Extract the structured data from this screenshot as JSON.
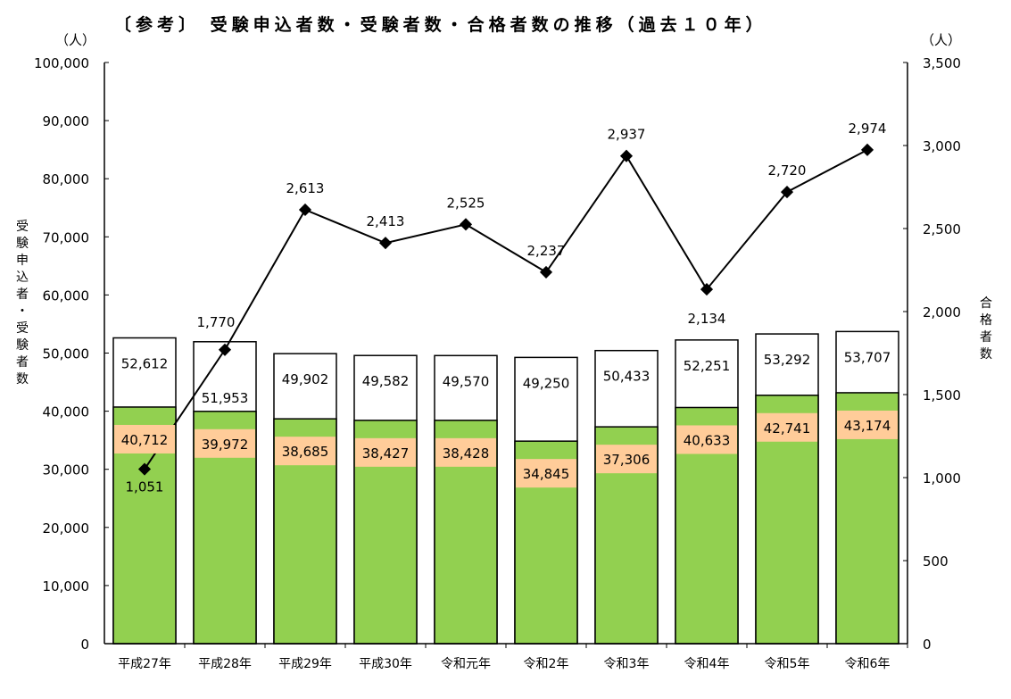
{
  "chart_data": {
    "type": "bar+line",
    "title": "〔参考〕 受験申込者数・受験者数・合格者数の推移（過去１０年）",
    "left_unit": "（人）",
    "right_unit": "（人）",
    "ylabel": "受験申込者・受験者数",
    "y2label": "合格者数",
    "ylim": [
      0,
      100000
    ],
    "y2lim": [
      0,
      3500
    ],
    "yticks": [
      "0",
      "10,000",
      "20,000",
      "30,000",
      "40,000",
      "50,000",
      "60,000",
      "70,000",
      "80,000",
      "90,000",
      "100,000"
    ],
    "y2ticks": [
      "0",
      "500",
      "1,000",
      "1,500",
      "2,000",
      "2,500",
      "3,000",
      "3,500"
    ],
    "categories": [
      "平成27年",
      "平成28年",
      "平成29年",
      "平成30年",
      "令和元年",
      "令和2年",
      "令和3年",
      "令和4年",
      "令和5年",
      "令和6年"
    ],
    "series": [
      {
        "key": "applicants",
        "type": "bar",
        "axis": "left",
        "color": "#FFFFFF",
        "values": [
          52612,
          51953,
          49902,
          49582,
          49570,
          49250,
          50433,
          52251,
          53292,
          53707
        ],
        "labels": [
          "52,612",
          "51,953",
          "49,902",
          "49,582",
          "49,570",
          "49,250",
          "50,433",
          "52,251",
          "53,292",
          "53,707"
        ]
      },
      {
        "key": "examinees",
        "type": "bar",
        "axis": "left",
        "color": "#92D050",
        "label_bg": "#FFCC99",
        "values": [
          40712,
          39972,
          38685,
          38427,
          38428,
          34845,
          37306,
          40633,
          42741,
          43174
        ],
        "labels": [
          "40,712",
          "39,972",
          "38,685",
          "38,427",
          "38,428",
          "34,845",
          "37,306",
          "40,633",
          "42,741",
          "43,174"
        ]
      },
      {
        "key": "passers",
        "type": "line",
        "axis": "right",
        "color": "#000000",
        "values": [
          1051,
          1770,
          2613,
          2413,
          2525,
          2237,
          2937,
          2134,
          2720,
          2974
        ],
        "labels": [
          "1,051",
          "1,770",
          "2,613",
          "2,413",
          "2,525",
          "2,237",
          "2,937",
          "2,134",
          "2,720",
          "2,974"
        ]
      }
    ],
    "grid": false,
    "legend": "none"
  }
}
